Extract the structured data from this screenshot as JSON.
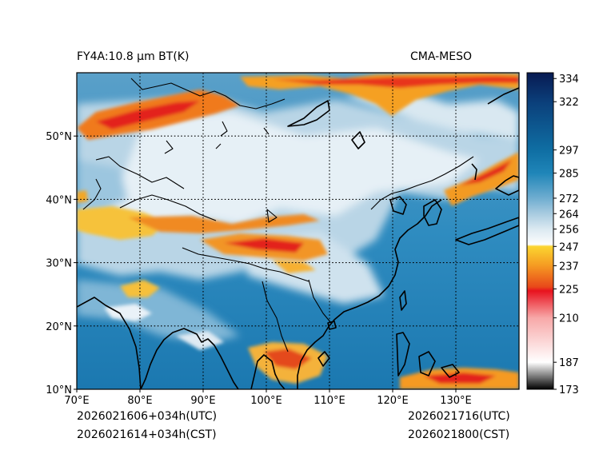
{
  "header": {
    "left_title": "FY4A:10.8 μm BT(K)",
    "right_title": "CMA-MESO"
  },
  "footer": {
    "init_utc": "2026021606+034h(UTC)",
    "init_cst": "2026021614+034h(CST)",
    "valid_utc": "2026021716(UTC)",
    "valid_cst": "2026021800(CST)"
  },
  "map": {
    "lon_range": [
      70,
      140
    ],
    "lat_range": [
      10,
      60
    ],
    "lon_ticks": [
      70,
      80,
      90,
      100,
      110,
      120,
      130
    ],
    "lon_labels": [
      "70°E",
      "80°E",
      "90°E",
      "100°E",
      "110°E",
      "120°E",
      "130°E"
    ],
    "lat_ticks": [
      10,
      20,
      30,
      40,
      50
    ],
    "lat_labels": [
      "10°N",
      "20°N",
      "30°N",
      "40°N",
      "50°N"
    ],
    "grid_lon": [
      80,
      90,
      100,
      110,
      120,
      130
    ],
    "grid_lat": [
      20,
      30,
      40,
      50
    ]
  },
  "colorbar": {
    "range": [
      173,
      337
    ],
    "ticks": [
      173,
      187,
      210,
      225,
      237,
      247,
      256,
      264,
      272,
      285,
      297,
      322,
      334
    ],
    "labels": [
      "173",
      "187",
      "210",
      "225",
      "237",
      "247",
      "256",
      "264",
      "272",
      "285",
      "297",
      "322",
      "334"
    ],
    "color_stops": [
      {
        "value": 173,
        "color": "#000000"
      },
      {
        "value": 187,
        "color": "#ffffff"
      },
      {
        "value": 210,
        "color": "#f7a8a8"
      },
      {
        "value": 224,
        "color": "#e8121e"
      },
      {
        "value": 226,
        "color": "#e8481a"
      },
      {
        "value": 237,
        "color": "#f59a22"
      },
      {
        "value": 247,
        "color": "#fbd530"
      },
      {
        "value": 248,
        "color": "#fdfdfd"
      },
      {
        "value": 256,
        "color": "#dbe9f1"
      },
      {
        "value": 264,
        "color": "#a8cbe0"
      },
      {
        "value": 272,
        "color": "#6fadd0"
      },
      {
        "value": 285,
        "color": "#1f85b8"
      },
      {
        "value": 297,
        "color": "#0f6ea3"
      },
      {
        "value": 322,
        "color": "#0b3f7a"
      },
      {
        "value": 337,
        "color": "#081a52"
      }
    ]
  }
}
